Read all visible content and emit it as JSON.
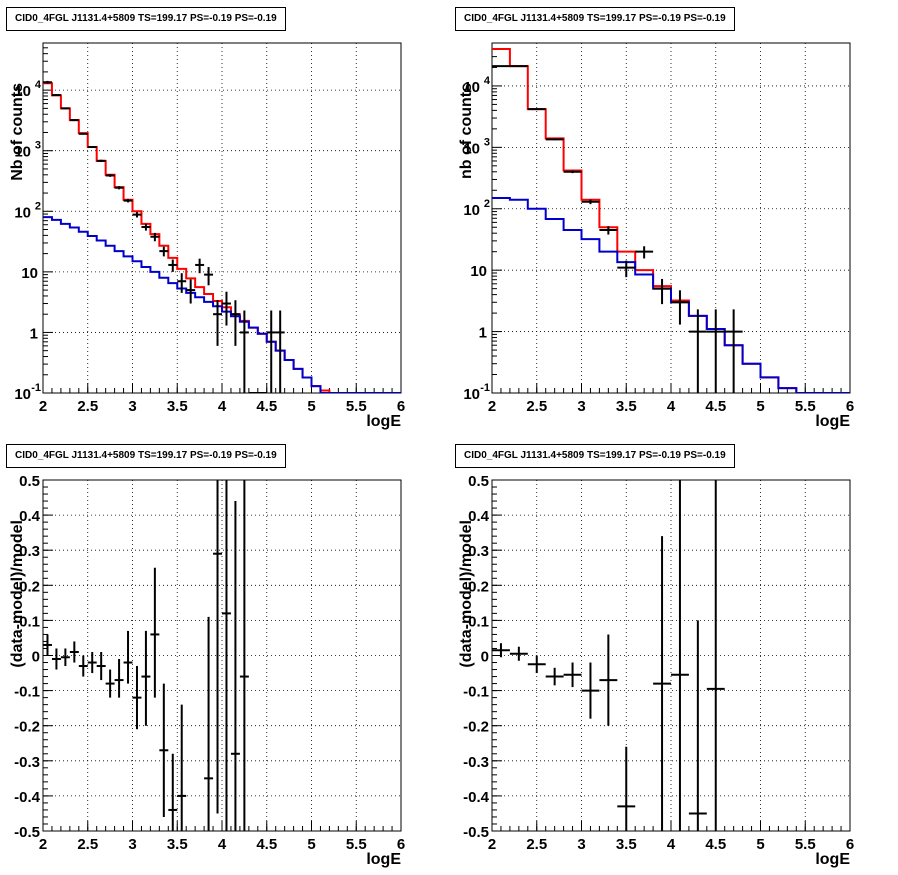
{
  "chart_data": [
    {
      "type": "line",
      "panel": "top-left",
      "title": "CID0_4FGL J1131.4+5809 TS=199.17 PS=-0.19 PS=-0.19",
      "xlabel": "logE",
      "ylabel": "Nb of counts",
      "xlim": [
        2,
        6
      ],
      "ylim": [
        0.1,
        60000
      ],
      "yscale": "log",
      "grid": true,
      "x_ticks": [
        "2",
        "2.5",
        "3",
        "3.5",
        "4",
        "4.5",
        "5",
        "5.5",
        "6"
      ],
      "y_ticks": [
        {
          "v": 0.1,
          "label": "10",
          "exp": "-1"
        },
        {
          "v": 1,
          "label": "1",
          "exp": ""
        },
        {
          "v": 10,
          "label": "10",
          "exp": ""
        },
        {
          "v": 100,
          "label": "10",
          "exp": "2"
        },
        {
          "v": 1000,
          "label": "10",
          "exp": "3"
        },
        {
          "v": 10000,
          "label": "10",
          "exp": "4"
        }
      ],
      "series": [
        {
          "color": "#ff0000",
          "bin_width": 0.1,
          "x": [
            2.0,
            2.1,
            2.2,
            2.3,
            2.4,
            2.5,
            2.6,
            2.7,
            2.8,
            2.9,
            3.0,
            3.1,
            3.2,
            3.3,
            3.4,
            3.5,
            3.6,
            3.7,
            3.8,
            3.9,
            4.0,
            4.1,
            4.2,
            4.3,
            4.4,
            4.5,
            4.6,
            4.7,
            4.8,
            4.9,
            5.0,
            5.1,
            5.2,
            5.3,
            5.4,
            5.5,
            5.6,
            5.7,
            5.8,
            5.9
          ],
          "values": [
            13000,
            8200,
            5000,
            3200,
            1950,
            1150,
            680,
            400,
            250,
            155,
            100,
            62,
            42,
            27,
            17,
            11.2,
            7.8,
            5.6,
            4.3,
            3.3,
            2.6,
            2.0,
            1.55,
            1.2,
            0.95,
            0.7,
            0.5,
            0.35,
            0.25,
            0.18,
            0.13,
            0.11,
            0.1,
            0.1,
            0.1,
            0.1,
            0.1,
            0.1,
            0.1,
            0.1
          ]
        },
        {
          "color": "#0000cc",
          "bin_width": 0.1,
          "x": [
            2.0,
            2.1,
            2.2,
            2.3,
            2.4,
            2.5,
            2.6,
            2.7,
            2.8,
            2.9,
            3.0,
            3.1,
            3.2,
            3.3,
            3.4,
            3.5,
            3.6,
            3.7,
            3.8,
            3.9,
            4.0,
            4.1,
            4.2,
            4.3,
            4.4,
            4.5,
            4.6,
            4.7,
            4.8,
            4.9,
            5.0,
            5.1,
            5.2,
            5.3,
            5.4,
            5.5,
            5.6,
            5.7,
            5.8,
            5.9
          ],
          "values": [
            80,
            72,
            62,
            54,
            46,
            39,
            33,
            27,
            22,
            18,
            15,
            12,
            10,
            8,
            6.5,
            5.3,
            4.5,
            3.8,
            3.2,
            2.7,
            2.2,
            1.85,
            1.5,
            1.2,
            0.95,
            0.7,
            0.5,
            0.35,
            0.25,
            0.18,
            0.13,
            0.1,
            0.1,
            0.1,
            0.1,
            0.1,
            0.1,
            0.1,
            0.1,
            0.1
          ]
        },
        {
          "color": "#000000",
          "kind": "points",
          "x": [
            2.05,
            2.15,
            2.25,
            2.35,
            2.45,
            2.55,
            2.65,
            2.75,
            2.85,
            2.95,
            3.05,
            3.15,
            3.25,
            3.35,
            3.45,
            3.55,
            3.65,
            3.75,
            3.85,
            3.95,
            4.05,
            4.15,
            4.25,
            4.35,
            4.45,
            4.55,
            4.65
          ],
          "values": [
            13500,
            8300,
            5000,
            3200,
            1900,
            1150,
            680,
            390,
            245,
            150,
            88,
            55,
            38,
            22,
            13,
            7,
            5,
            13,
            9,
            2,
            3,
            2,
            1,
            0.1,
            0.1,
            1,
            1
          ],
          "err_lo": [
            12800,
            8100,
            4870,
            3100,
            1850,
            1110,
            650,
            370,
            230,
            140,
            79,
            48,
            32,
            18,
            10,
            4.5,
            3,
            9.5,
            6,
            0.6,
            1.3,
            0.6,
            0.1,
            0.1,
            0.1,
            0.1,
            0.1
          ],
          "err_hi": [
            14200,
            8500,
            5130,
            3300,
            1950,
            1190,
            710,
            410,
            260,
            160,
            97,
            62,
            44,
            26,
            16,
            9.5,
            7.5,
            16.5,
            12,
            3.4,
            4.7,
            3.4,
            2.3,
            0.1,
            0.1,
            2.3,
            2.3
          ]
        }
      ]
    },
    {
      "type": "line",
      "panel": "top-right",
      "title": "CID0_4FGL J1131.4+5809 TS=199.17 PS=-0.19 PS=-0.19",
      "xlabel": "logE",
      "ylabel": "nb of counts",
      "xlim": [
        2,
        6
      ],
      "ylim": [
        0.1,
        50000
      ],
      "yscale": "log",
      "grid": true,
      "x_ticks": [
        "2",
        "2.5",
        "3",
        "3.5",
        "4",
        "4.5",
        "5",
        "5.5",
        "6"
      ],
      "y_ticks": [
        {
          "v": 0.1,
          "label": "10",
          "exp": "-1"
        },
        {
          "v": 1,
          "label": "1",
          "exp": ""
        },
        {
          "v": 10,
          "label": "10",
          "exp": ""
        },
        {
          "v": 100,
          "label": "10",
          "exp": "2"
        },
        {
          "v": 1000,
          "label": "10",
          "exp": "3"
        },
        {
          "v": 10000,
          "label": "10",
          "exp": "4"
        }
      ],
      "series": [
        {
          "color": "#ff0000",
          "bin_width": 0.2,
          "x": [
            2.0,
            2.2,
            2.4,
            2.6,
            2.8,
            3.0,
            3.2,
            3.4,
            3.6,
            3.8,
            4.0,
            4.2,
            4.4,
            4.6,
            4.8,
            5.0,
            5.2,
            5.4,
            5.6,
            5.8
          ],
          "values": [
            40000,
            21000,
            4200,
            1400,
            420,
            140,
            50,
            20,
            10,
            5.5,
            3.2,
            1.8,
            1.1,
            0.6,
            0.3,
            0.18,
            0.12,
            0.1,
            0.1,
            0.1
          ]
        },
        {
          "color": "#0000cc",
          "bin_width": 0.2,
          "x": [
            2.0,
            2.2,
            2.4,
            2.6,
            2.8,
            3.0,
            3.2,
            3.4,
            3.6,
            3.8,
            4.0,
            4.2,
            4.4,
            4.6,
            4.8,
            5.0,
            5.2,
            5.4,
            5.6,
            5.8
          ],
          "values": [
            150,
            140,
            100,
            68,
            45,
            32,
            20,
            13.5,
            8.5,
            5.0,
            3.0,
            1.8,
            1.1,
            0.6,
            0.3,
            0.18,
            0.12,
            0.1,
            0.1,
            0.1
          ]
        },
        {
          "color": "#000000",
          "kind": "points",
          "x": [
            2.1,
            2.3,
            2.5,
            2.7,
            2.9,
            3.1,
            3.3,
            3.5,
            3.7,
            3.9,
            4.1,
            4.3,
            4.5,
            4.7
          ],
          "values": [
            21000,
            21000,
            4200,
            1350,
            400,
            130,
            45,
            11,
            20,
            5,
            3,
            1,
            1,
            1
          ],
          "err_lo": [
            20700,
            20700,
            4130,
            1310,
            380,
            119,
            38,
            7.7,
            15.5,
            2.8,
            1.3,
            0.1,
            0.1,
            0.1
          ],
          "err_hi": [
            21300,
            21300,
            4270,
            1390,
            420,
            141,
            52,
            14.3,
            24.5,
            7.2,
            4.7,
            2.3,
            2.3,
            2.3
          ]
        }
      ]
    },
    {
      "type": "scatter",
      "panel": "bottom-left",
      "title": "CID0_4FGL J1131.4+5809 TS=199.17 PS=-0.19 PS=-0.19",
      "xlabel": "logE",
      "ylabel": "(data-model)/model",
      "xlim": [
        2,
        6
      ],
      "ylim": [
        -0.5,
        0.5
      ],
      "grid": true,
      "x_ticks": [
        "2",
        "2.5",
        "3",
        "3.5",
        "4",
        "4.5",
        "5",
        "5.5",
        "6"
      ],
      "y_ticks": [
        "-0.5",
        "-0.4",
        "-0.3",
        "-0.2",
        "-0.1",
        "0",
        "0.1",
        "0.2",
        "0.3",
        "0.4",
        "0.5"
      ],
      "x_half_width": 0.05,
      "series": [
        {
          "color": "#000000",
          "x": [
            2.05,
            2.15,
            2.25,
            2.35,
            2.45,
            2.55,
            2.65,
            2.75,
            2.85,
            2.95,
            3.05,
            3.15,
            3.25,
            3.35,
            3.45,
            3.55,
            3.85,
            3.95,
            4.05,
            4.15,
            4.25
          ],
          "values": [
            0.03,
            -0.01,
            -0.005,
            0.01,
            -0.03,
            -0.02,
            -0.03,
            -0.08,
            -0.07,
            -0.02,
            -0.12,
            -0.06,
            0.06,
            -0.27,
            -0.44,
            -0.4,
            -0.35,
            0.29,
            0.12,
            -0.28,
            -0.06
          ],
          "err_lo": [
            0.0,
            -0.04,
            -0.03,
            -0.02,
            -0.06,
            -0.05,
            -0.07,
            -0.12,
            -0.12,
            -0.08,
            -0.21,
            -0.2,
            -0.12,
            -0.46,
            -0.6,
            -0.6,
            -0.8,
            -0.45,
            -0.5,
            -0.6,
            -0.6
          ],
          "err_hi": [
            0.06,
            0.02,
            0.02,
            0.04,
            0.0,
            0.01,
            0.01,
            -0.04,
            -0.01,
            0.07,
            -0.03,
            0.07,
            0.25,
            -0.08,
            -0.28,
            -0.14,
            0.11,
            0.6,
            0.6,
            0.44,
            0.6
          ]
        }
      ]
    },
    {
      "type": "scatter",
      "panel": "bottom-right",
      "title": "CID0_4FGL J1131.4+5809 TS=199.17 PS=-0.19 PS=-0.19",
      "xlabel": "logE",
      "ylabel": "(data-model)/model",
      "xlim": [
        2,
        6
      ],
      "ylim": [
        -0.5,
        0.5
      ],
      "grid": true,
      "x_ticks": [
        "2",
        "2.5",
        "3",
        "3.5",
        "4",
        "4.5",
        "5",
        "5.5",
        "6"
      ],
      "y_ticks": [
        "-0.5",
        "-0.4",
        "-0.3",
        "-0.2",
        "-0.1",
        "0",
        "0.1",
        "0.2",
        "0.3",
        "0.4",
        "0.5"
      ],
      "x_half_width": 0.1,
      "series": [
        {
          "color": "#000000",
          "x": [
            2.1,
            2.3,
            2.5,
            2.7,
            2.9,
            3.1,
            3.3,
            3.5,
            3.9,
            4.1,
            4.3,
            4.5
          ],
          "values": [
            0.015,
            0.005,
            -0.025,
            -0.06,
            -0.055,
            -0.1,
            -0.07,
            -0.43,
            -0.08,
            -0.055,
            -0.45,
            -0.095
          ],
          "err_lo": [
            -0.005,
            -0.015,
            -0.05,
            -0.085,
            -0.09,
            -0.18,
            -0.2,
            -0.6,
            -0.6,
            -0.6,
            -0.6,
            -0.6
          ],
          "err_hi": [
            0.035,
            0.025,
            0.0,
            -0.035,
            -0.02,
            -0.02,
            0.06,
            -0.26,
            0.34,
            0.5,
            0.1,
            0.6
          ]
        }
      ]
    }
  ]
}
